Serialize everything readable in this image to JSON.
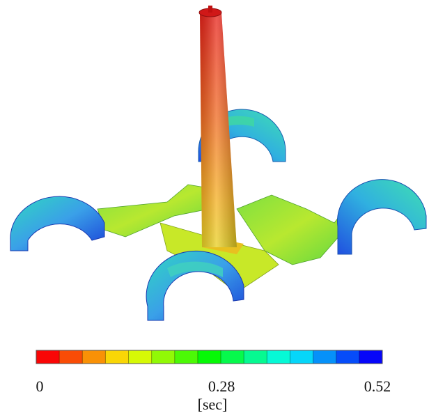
{
  "colorbar": {
    "label": "[sec]",
    "range": [
      0,
      0.52
    ],
    "ticks": [
      0,
      0.28,
      0.52
    ]
  }
}
